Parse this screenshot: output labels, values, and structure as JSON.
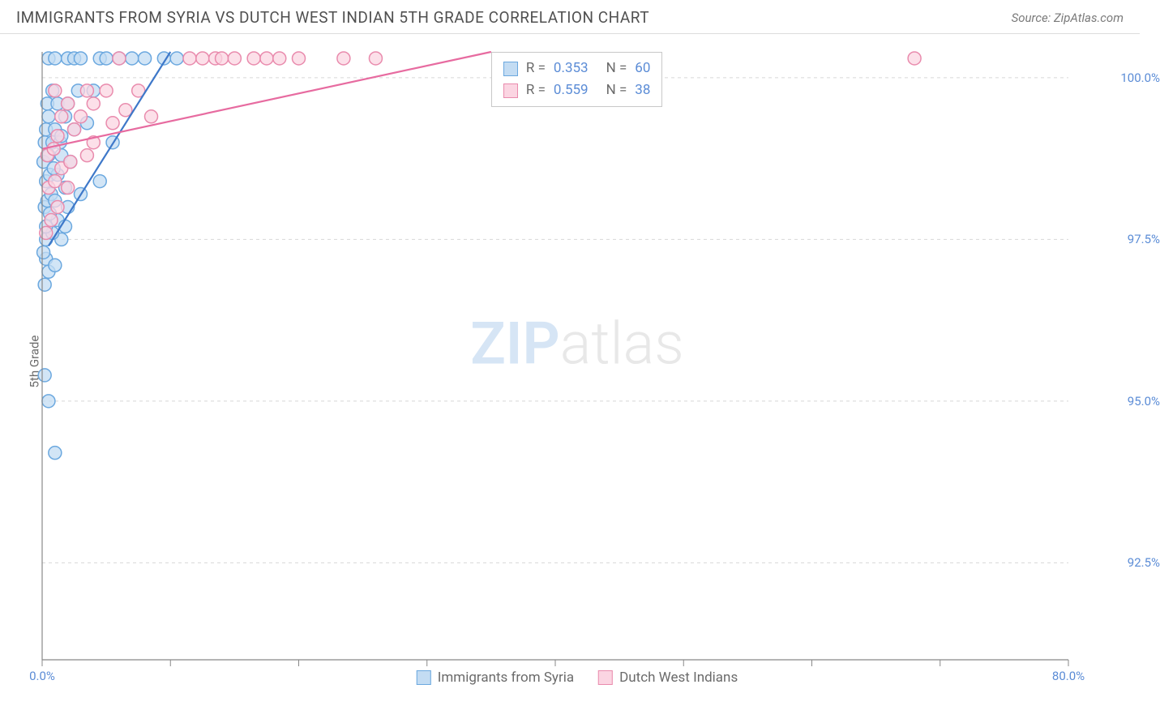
{
  "header": {
    "title": "IMMIGRANTS FROM SYRIA VS DUTCH WEST INDIAN 5TH GRADE CORRELATION CHART",
    "source": "Source: ZipAtlas.com"
  },
  "chart": {
    "type": "scatter",
    "background_color": "#ffffff",
    "grid_color": "#d8d8d8",
    "axis_color": "#888888",
    "tick_label_color": "#5b8cd6",
    "y_axis": {
      "label": "5th Grade",
      "min": 91.0,
      "max": 100.4,
      "ticks": [
        92.5,
        95.0,
        97.5,
        100.0
      ],
      "tick_labels": [
        "92.5%",
        "95.0%",
        "97.5%",
        "100.0%"
      ]
    },
    "x_axis": {
      "min": 0.0,
      "max": 80.0,
      "ticks": [
        0,
        10,
        20,
        30,
        40,
        50,
        60,
        70,
        80
      ],
      "end_labels": [
        "0.0%",
        "80.0%"
      ]
    },
    "series": [
      {
        "name": "Immigrants from Syria",
        "marker_fill": "#c3dcf3",
        "marker_stroke": "#6ba8df",
        "marker_radius": 8,
        "marker_opacity": 0.75,
        "line_color": "#3e78c9",
        "line_width": 2.2,
        "trend_line": {
          "x1": 0.5,
          "y1": 97.4,
          "x2": 10.0,
          "y2": 100.4
        },
        "r_value": "0.353",
        "n_value": "60",
        "points": [
          [
            0.2,
            95.4
          ],
          [
            0.5,
            95.0
          ],
          [
            1.0,
            94.2
          ],
          [
            0.2,
            96.8
          ],
          [
            0.5,
            97.0
          ],
          [
            0.3,
            97.2
          ],
          [
            0.1,
            97.3
          ],
          [
            0.3,
            97.5
          ],
          [
            1.0,
            97.1
          ],
          [
            1.5,
            97.5
          ],
          [
            0.8,
            97.6
          ],
          [
            1.2,
            97.8
          ],
          [
            0.2,
            98.0
          ],
          [
            0.4,
            98.1
          ],
          [
            0.7,
            98.2
          ],
          [
            1.0,
            98.1
          ],
          [
            1.8,
            97.7
          ],
          [
            2.0,
            98.0
          ],
          [
            3.0,
            98.2
          ],
          [
            0.3,
            98.4
          ],
          [
            0.6,
            98.5
          ],
          [
            1.2,
            98.5
          ],
          [
            0.1,
            98.7
          ],
          [
            0.5,
            98.8
          ],
          [
            1.5,
            98.8
          ],
          [
            2.2,
            98.7
          ],
          [
            0.2,
            99.0
          ],
          [
            0.8,
            99.0
          ],
          [
            1.4,
            99.0
          ],
          [
            0.3,
            99.2
          ],
          [
            1.0,
            99.2
          ],
          [
            2.5,
            99.2
          ],
          [
            0.5,
            99.4
          ],
          [
            1.8,
            99.4
          ],
          [
            3.5,
            99.3
          ],
          [
            0.4,
            99.6
          ],
          [
            1.2,
            99.6
          ],
          [
            2.0,
            99.6
          ],
          [
            0.8,
            99.8
          ],
          [
            2.8,
            99.8
          ],
          [
            4.0,
            99.8
          ],
          [
            0.5,
            100.3
          ],
          [
            1.0,
            100.3
          ],
          [
            2.0,
            100.3
          ],
          [
            2.5,
            100.3
          ],
          [
            3.0,
            100.3
          ],
          [
            4.5,
            100.3
          ],
          [
            5.0,
            100.3
          ],
          [
            6.0,
            100.3
          ],
          [
            7.0,
            100.3
          ],
          [
            8.0,
            100.3
          ],
          [
            9.5,
            100.3
          ],
          [
            10.5,
            100.3
          ],
          [
            4.5,
            98.4
          ],
          [
            5.5,
            99.0
          ],
          [
            0.3,
            97.7
          ],
          [
            0.6,
            97.9
          ],
          [
            1.8,
            98.3
          ],
          [
            0.9,
            98.6
          ],
          [
            1.5,
            99.1
          ]
        ]
      },
      {
        "name": "Dutch West Indians",
        "marker_fill": "#fbd5e2",
        "marker_stroke": "#e98bad",
        "marker_radius": 8,
        "marker_opacity": 0.75,
        "line_color": "#e76ba0",
        "line_width": 2.2,
        "trend_line": {
          "x1": 0.0,
          "y1": 98.9,
          "x2": 35.0,
          "y2": 100.4
        },
        "r_value": "0.559",
        "n_value": "38",
        "points": [
          [
            0.3,
            97.6
          ],
          [
            0.7,
            97.8
          ],
          [
            1.2,
            98.0
          ],
          [
            0.5,
            98.3
          ],
          [
            1.0,
            98.4
          ],
          [
            2.0,
            98.3
          ],
          [
            1.5,
            98.6
          ],
          [
            0.4,
            98.8
          ],
          [
            0.9,
            98.9
          ],
          [
            2.2,
            98.7
          ],
          [
            3.5,
            98.8
          ],
          [
            1.2,
            99.1
          ],
          [
            2.5,
            99.2
          ],
          [
            4.0,
            99.0
          ],
          [
            1.5,
            99.4
          ],
          [
            3.0,
            99.4
          ],
          [
            5.5,
            99.3
          ],
          [
            2.0,
            99.6
          ],
          [
            4.0,
            99.6
          ],
          [
            6.5,
            99.5
          ],
          [
            1.0,
            99.8
          ],
          [
            3.5,
            99.8
          ],
          [
            5.0,
            99.8
          ],
          [
            7.5,
            99.8
          ],
          [
            8.5,
            99.4
          ],
          [
            6.0,
            100.3
          ],
          [
            11.5,
            100.3
          ],
          [
            12.5,
            100.3
          ],
          [
            13.5,
            100.3
          ],
          [
            14.0,
            100.3
          ],
          [
            15.0,
            100.3
          ],
          [
            16.5,
            100.3
          ],
          [
            17.5,
            100.3
          ],
          [
            18.5,
            100.3
          ],
          [
            20.0,
            100.3
          ],
          [
            23.5,
            100.3
          ],
          [
            26.0,
            100.3
          ],
          [
            68.0,
            100.3
          ]
        ]
      }
    ],
    "legend_box": {
      "r_label": "R =",
      "n_label": "N ="
    },
    "bottom_legend": [
      {
        "label": "Immigrants from Syria"
      },
      {
        "label": "Dutch West Indians"
      }
    ],
    "watermark": {
      "zip": "ZIP",
      "atlas": "atlas",
      "zip_color": "#d6e5f5",
      "atlas_color": "#e8e8e8"
    }
  }
}
